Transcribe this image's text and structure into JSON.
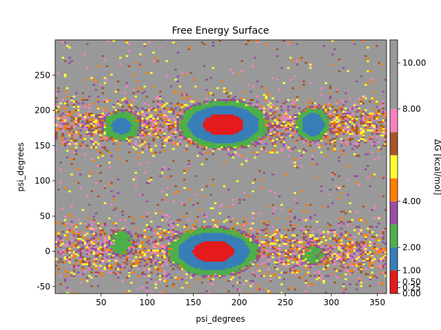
{
  "chart_data": {
    "type": "heatmap",
    "title": "Free Energy Surface",
    "xlabel": "psi_degrees",
    "ylabel": "psi_degrees",
    "xlim": [
      0,
      360
    ],
    "ylim": [
      -60,
      300
    ],
    "x_ticks": [
      50,
      100,
      150,
      200,
      250,
      300,
      350
    ],
    "y_ticks": [
      -50,
      0,
      50,
      100,
      150,
      200,
      250
    ],
    "colorbar": {
      "label": "ΔG [kcal/mol]",
      "range": [
        0,
        11
      ],
      "ticks": [
        0.0,
        0.25,
        0.5,
        1.0,
        2.0,
        4.0,
        8.0,
        10.0
      ],
      "tick_labels": [
        "0.00",
        "0.25",
        "0.50",
        "1.00",
        "2.00",
        "4.00",
        "8.00",
        "10.00"
      ],
      "levels": [
        {
          "from": 0,
          "to": 1,
          "color": "#e41a1c"
        },
        {
          "from": 1,
          "to": 2,
          "color": "#377eb8"
        },
        {
          "from": 2,
          "to": 3,
          "color": "#4daf4a"
        },
        {
          "from": 3,
          "to": 4,
          "color": "#984ea3"
        },
        {
          "from": 4,
          "to": 5,
          "color": "#ff7f00"
        },
        {
          "from": 5,
          "to": 6,
          "color": "#ffff33"
        },
        {
          "from": 6,
          "to": 7,
          "color": "#a65628"
        },
        {
          "from": 7,
          "to": 8,
          "color": "#f781bf"
        },
        {
          "from": 8,
          "to": 11,
          "color": "#999999"
        }
      ]
    },
    "basins": [
      {
        "center": [
          183,
          180
        ],
        "radius": [
          33,
          23
        ],
        "min_energy": 0.5
      },
      {
        "center": [
          172,
          0
        ],
        "radius": [
          33,
          23
        ],
        "min_energy": 0.5
      },
      {
        "center": [
          280,
          180
        ],
        "radius": [
          14,
          19
        ],
        "min_energy": 1.2
      },
      {
        "center": [
          72,
          178
        ],
        "radius": [
          18,
          19
        ],
        "min_energy": 1.6
      },
      {
        "center": [
          72,
          12
        ],
        "radius": [
          15,
          22
        ],
        "min_energy": 2.3
      },
      {
        "center": [
          280,
          -5
        ],
        "radius": [
          20,
          20
        ],
        "min_energy": 2.6
      }
    ],
    "grid": false,
    "legend": "colorbar-right"
  }
}
